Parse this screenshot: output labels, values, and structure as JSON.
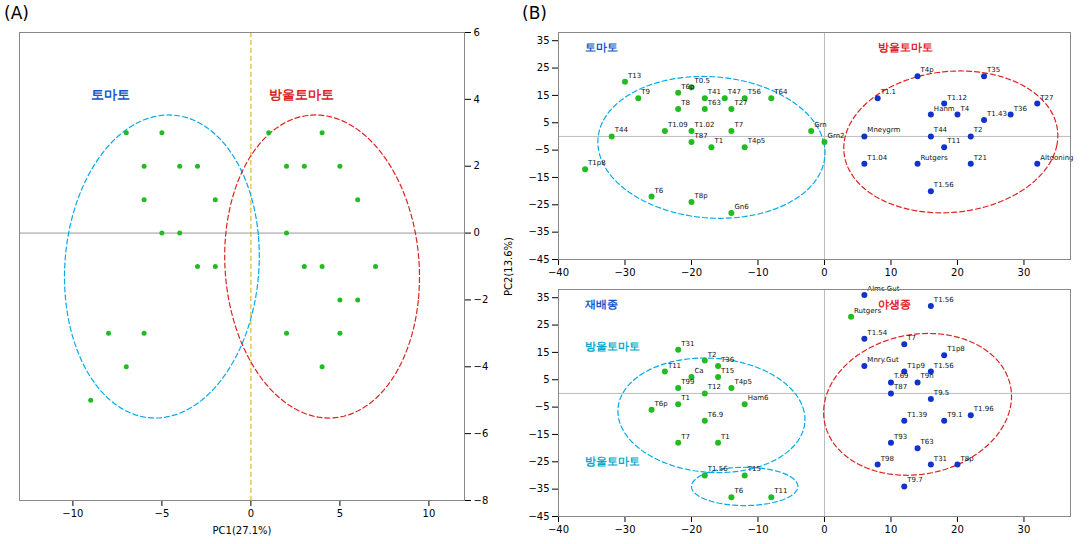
{
  "chart_data": [
    {
      "type": "scatter",
      "title": "(A)",
      "xlabel": "PC1(27.1%)",
      "ylabel": "PC2(13.6%)",
      "xlim": [
        -13,
        12
      ],
      "ylim": [
        -8,
        6
      ],
      "xticks": [
        -10,
        -5,
        0,
        5,
        10
      ],
      "yticks": [
        -8,
        -6,
        -4,
        -2,
        0,
        2,
        4,
        6
      ],
      "series": [
        {
          "color": "#22bb22",
          "x": [
            -7,
            -6,
            -5,
            -4,
            -3,
            -2,
            -6,
            -5,
            -4,
            -3,
            -2,
            -8,
            -7,
            -6,
            -9,
            1,
            2,
            3,
            4,
            5,
            6,
            2,
            3,
            4,
            5,
            6,
            2,
            4,
            5,
            7
          ],
          "y": [
            3,
            2,
            3,
            2,
            2,
            1,
            1,
            0,
            0,
            -1,
            -1,
            -3,
            -4,
            -3,
            -5,
            3,
            2,
            2,
            3,
            2,
            1,
            0,
            -1,
            -1,
            -2,
            -2,
            -3,
            -4,
            -3,
            -1
          ]
        }
      ],
      "ellipses": [
        {
          "cx": -5,
          "cy": -1,
          "width": 11,
          "height": 9,
          "angle": 10,
          "color": "#00aaee",
          "line_style": "dashed"
        },
        {
          "cx": 4,
          "cy": -1,
          "width": 11,
          "height": 9,
          "angle": -10,
          "color": "#dd2222",
          "line_style": "dashed"
        }
      ],
      "reference_lines": [
        {
          "axis": "y",
          "value": 0,
          "color": "#999999",
          "line_style": "solid"
        },
        {
          "axis": "x",
          "value": 0,
          "color": "#ddaa00",
          "line_style": "dashed"
        }
      ],
      "annotations": [
        {
          "x": -9,
          "y": 4.0,
          "text": "토마토",
          "color": "#1155cc"
        },
        {
          "x": 1,
          "y": 4.0,
          "text": "방울토마토",
          "color": "#dd2222"
        }
      ]
    },
    {
      "type": "scatter",
      "title": "(B)",
      "xlim": [
        -40,
        37
      ],
      "ylim": [
        -45,
        38
      ],
      "xticks": [
        -40,
        -30,
        -20,
        -10,
        0,
        10,
        20,
        30
      ],
      "yticks": [
        -45,
        -35,
        -25,
        -15,
        -5,
        5,
        15,
        25,
        35
      ],
      "series": [
        {
          "color": "#22bb22",
          "x": [
            -30,
            -22,
            -20,
            -28,
            -18,
            -15,
            -12,
            -8,
            -22,
            -18,
            -14,
            -32,
            -24,
            -20,
            -14,
            -20,
            -17,
            -12,
            -36,
            -26,
            -20,
            -14,
            -2,
            0
          ],
          "y": [
            20,
            16,
            18,
            14,
            14,
            14,
            14,
            14,
            10,
            10,
            10,
            0,
            2,
            2,
            2,
            -2,
            -4,
            -4,
            -12,
            -22,
            -24,
            -28,
            2,
            -2
          ],
          "labels": [
            "T13",
            "T6p",
            "T0.5",
            "T9",
            "T41",
            "T47",
            "T56",
            "T64",
            "T8",
            "T63",
            "T27",
            "T44",
            "T1.09",
            "T1.02",
            "T7",
            "T87",
            "T1",
            "T4p5",
            "T1p8",
            "T6",
            "T8p",
            "Gn6",
            "Grn",
            "Grn2"
          ]
        },
        {
          "color": "#1133cc",
          "x": [
            14,
            24,
            8,
            18,
            32,
            16,
            20,
            24,
            28,
            6,
            16,
            22,
            18,
            6,
            14,
            22,
            32,
            16
          ],
          "y": [
            22,
            22,
            14,
            12,
            12,
            8,
            8,
            6,
            8,
            0,
            0,
            0,
            -4,
            -10,
            -10,
            -10,
            -10,
            -20
          ],
          "labels": [
            "T4p",
            "T35",
            "T1.1",
            "T1.12",
            "T27",
            "Hanm",
            "T4",
            "T1.43",
            "T36",
            "Mneygrm",
            "T44",
            "T2",
            "T11",
            "T1.04",
            "Rutgers",
            "T21",
            "Altooning",
            "T1.56"
          ]
        }
      ],
      "ellipses": [
        {
          "cx": -17,
          "cy": -4,
          "width": 34,
          "height": 52,
          "angle": 5,
          "color": "#00aaee",
          "line_style": "dashed"
        },
        {
          "cx": 19,
          "cy": -2,
          "width": 32,
          "height": 52,
          "angle": -5,
          "color": "#dd2222",
          "line_style": "dashed"
        }
      ],
      "reference_lines": [
        {
          "axis": "y",
          "value": 0,
          "color": "#bbbbbb",
          "line_style": "solid"
        },
        {
          "axis": "x",
          "value": 0,
          "color": "#bbbbbb",
          "line_style": "solid"
        }
      ],
      "annotations": [
        {
          "x": -36,
          "y": 31.16,
          "text": "토마토",
          "color": "#1155cc"
        },
        {
          "x": 8,
          "y": 31.16,
          "text": "방울토마토",
          "color": "#dd2222"
        }
      ]
    },
    {
      "type": "scatter",
      "xlim": [
        -40,
        37
      ],
      "ylim": [
        -45,
        38
      ],
      "xticks": [
        -40,
        -30,
        -20,
        -10,
        0,
        10,
        20,
        30
      ],
      "yticks": [
        -45,
        -35,
        -25,
        -15,
        -5,
        5,
        15,
        25,
        35
      ],
      "series": [
        {
          "color": "#22bb22",
          "x": [
            -22,
            -18,
            -16,
            -24,
            -20,
            -16,
            -22,
            -18,
            -14,
            -26,
            -22,
            -12,
            -18,
            -22,
            -16,
            -18,
            -12,
            -14,
            -8,
            4
          ],
          "y": [
            16,
            12,
            10,
            8,
            6,
            6,
            2,
            0,
            2,
            -6,
            -4,
            -4,
            -10,
            -18,
            -18,
            -30,
            -30,
            -38,
            -38,
            28
          ],
          "labels": [
            "T31",
            "T2",
            "T36",
            "T11",
            "Ca",
            "T15",
            "T99",
            "T12",
            "T4p5",
            "T6p",
            "T1",
            "Ham6",
            "T6.9",
            "T7",
            "T1",
            "T1.56",
            "T15",
            "T6",
            "T11",
            "Rutgers"
          ]
        },
        {
          "color": "#1133cc",
          "x": [
            6,
            16,
            6,
            12,
            18,
            6,
            12,
            16,
            10,
            14,
            10,
            16,
            12,
            18,
            22,
            10,
            14,
            8,
            16,
            20,
            12
          ],
          "y": [
            36,
            32,
            20,
            18,
            14,
            10,
            8,
            8,
            4,
            4,
            0,
            -2,
            -10,
            -10,
            -8,
            -18,
            -20,
            -26,
            -26,
            -26,
            -34
          ],
          "labels": [
            "Alms Gut",
            "T1.56",
            "T1.54",
            "T7",
            "T1p8",
            "Mnry.Gut",
            "T1p9",
            "T1.56",
            "T.69",
            "T9n",
            "T87",
            "T9.5",
            "T1.39",
            "T9.1",
            "T1.96",
            "T93",
            "T63",
            "T98",
            "T31",
            "T8p",
            "T9.7"
          ]
        }
      ],
      "ellipses": [
        {
          "cx": -17,
          "cy": -8,
          "width": 28,
          "height": 42,
          "angle": 5,
          "color": "#00aaee",
          "line_style": "dashed"
        },
        {
          "cx": 14,
          "cy": -4,
          "width": 28,
          "height": 52,
          "angle": -5,
          "color": "#dd2222",
          "line_style": "dashed"
        },
        {
          "cx": -12,
          "cy": -34,
          "width": 16,
          "height": 14,
          "angle": 0,
          "color": "#00aaee",
          "line_style": "dashed"
        }
      ],
      "reference_lines": [
        {
          "axis": "y",
          "value": 0,
          "color": "#bbbbbb",
          "line_style": "solid"
        },
        {
          "axis": "x",
          "value": 0,
          "color": "#bbbbbb",
          "line_style": "solid"
        }
      ],
      "annotations": [
        {
          "x": -36,
          "y": 31.16,
          "text": "재배종",
          "color": "#1155cc"
        },
        {
          "x": 8,
          "y": 31.16,
          "text": "야생종",
          "color": "#dd2222"
        },
        {
          "x": -36,
          "y": 16,
          "text": "방울토마토",
          "color": "#00aacc"
        },
        {
          "x": -36,
          "y": -26,
          "text": "방울토마토",
          "color": "#00aacc"
        }
      ]
    }
  ]
}
